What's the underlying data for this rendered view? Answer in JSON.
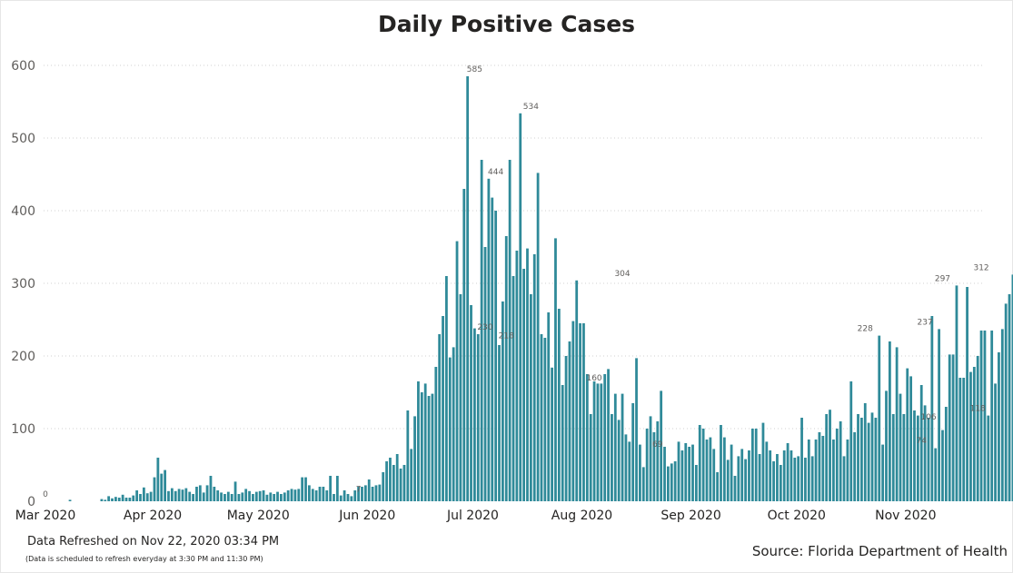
{
  "page": {
    "title": "Daily Positive Cases",
    "refreshed": "Data Refreshed on Nov 22, 2020 03:34 PM",
    "schedule_note": "(Data is scheduled to refresh everyday at 3:30 PM and 11:30 PM)",
    "source": "Source: Florida Department of Health"
  },
  "colors": {
    "bar": "#2f8a99",
    "grid": "#d0d0d0",
    "tick_text": "#605e5c",
    "label_text": "#605e5c"
  },
  "chart_data": {
    "type": "bar",
    "title": "Daily Positive Cases",
    "xlabel": "",
    "ylabel": "",
    "ylim": [
      0,
      600
    ],
    "yticks": [
      0,
      100,
      200,
      300,
      400,
      500,
      600
    ],
    "grid": "horizontal dotted",
    "x_start": "2020-03-01",
    "x_end": "2020-11-22",
    "xtick_labels": [
      {
        "label": "Mar 2020",
        "date": "2020-03-01"
      },
      {
        "label": "Apr 2020",
        "date": "2020-04-01"
      },
      {
        "label": "May 2020",
        "date": "2020-05-01"
      },
      {
        "label": "Jun 2020",
        "date": "2020-06-01"
      },
      {
        "label": "Jul 2020",
        "date": "2020-07-01"
      },
      {
        "label": "Aug 2020",
        "date": "2020-08-01"
      },
      {
        "label": "Sep 2020",
        "date": "2020-09-01"
      },
      {
        "label": "Oct 2020",
        "date": "2020-10-01"
      },
      {
        "label": "Nov 2020",
        "date": "2020-11-01"
      }
    ],
    "values": [
      0,
      0,
      0,
      0,
      0,
      0,
      0,
      2,
      0,
      0,
      0,
      0,
      0,
      0,
      0,
      0,
      3,
      2,
      7,
      4,
      6,
      5,
      9,
      5,
      5,
      8,
      15,
      10,
      19,
      11,
      13,
      33,
      60,
      38,
      43,
      14,
      18,
      14,
      17,
      16,
      18,
      13,
      10,
      20,
      22,
      12,
      22,
      35,
      20,
      15,
      12,
      10,
      13,
      10,
      27,
      10,
      12,
      17,
      14,
      10,
      13,
      14,
      15,
      9,
      12,
      10,
      13,
      10,
      12,
      15,
      17,
      16,
      17,
      33,
      33,
      22,
      17,
      15,
      20,
      20,
      15,
      35,
      10,
      35,
      8,
      15,
      10,
      7,
      15,
      20,
      20,
      22,
      30,
      20,
      22,
      23,
      40,
      55,
      60,
      50,
      65,
      45,
      50,
      125,
      72,
      117,
      165,
      150,
      162,
      145,
      148,
      185,
      230,
      255,
      310,
      198,
      212,
      358,
      285,
      430,
      585,
      270,
      238,
      230,
      470,
      350,
      444,
      418,
      400,
      215,
      275,
      365,
      470,
      310,
      345,
      534,
      320,
      348,
      285,
      340,
      452,
      230,
      225,
      260,
      184,
      362,
      265,
      160,
      200,
      220,
      248,
      304,
      245,
      245,
      175,
      120,
      165,
      162,
      162,
      175,
      182,
      120,
      148,
      112,
      148,
      92,
      82,
      135,
      197,
      78,
      47,
      100,
      117,
      95,
      110,
      152,
      75,
      48,
      52,
      55,
      82,
      70,
      80,
      75,
      78,
      50,
      105,
      100,
      85,
      88,
      72,
      40,
      105,
      88,
      57,
      78,
      35,
      62,
      72,
      58,
      70,
      100,
      100,
      65,
      108,
      82,
      70,
      55,
      65,
      50,
      70,
      80,
      70,
      60,
      62,
      115,
      60,
      85,
      62,
      85,
      95,
      90,
      120,
      126,
      85,
      100,
      110,
      62,
      85,
      165,
      95,
      120,
      115,
      135,
      108,
      122,
      115,
      228,
      78,
      152,
      220,
      120,
      212,
      148,
      120,
      183,
      172,
      125,
      118,
      160,
      132,
      115,
      255,
      73,
      237,
      98,
      130,
      202,
      202,
      297,
      170,
      170,
      295,
      178,
      185,
      200,
      235,
      235,
      118,
      235,
      162,
      205,
      237,
      272,
      285,
      312
    ],
    "data_labels": [
      {
        "day": 0,
        "value": 0
      },
      {
        "day": 89,
        "value": 7
      },
      {
        "day": 122,
        "value": 585
      },
      {
        "day": 125,
        "value": 230
      },
      {
        "day": 128,
        "value": 444
      },
      {
        "day": 131,
        "value": 218
      },
      {
        "day": 138,
        "value": 534
      },
      {
        "day": 156,
        "value": 160
      },
      {
        "day": 164,
        "value": 304
      },
      {
        "day": 174,
        "value": 69
      },
      {
        "day": 233,
        "value": 228
      },
      {
        "day": 249,
        "value": 74
      },
      {
        "day": 250,
        "value": 237
      },
      {
        "day": 251,
        "value": 106
      },
      {
        "day": 255,
        "value": 297
      },
      {
        "day": 265,
        "value": 118
      },
      {
        "day": 266,
        "value": 312
      }
    ]
  }
}
